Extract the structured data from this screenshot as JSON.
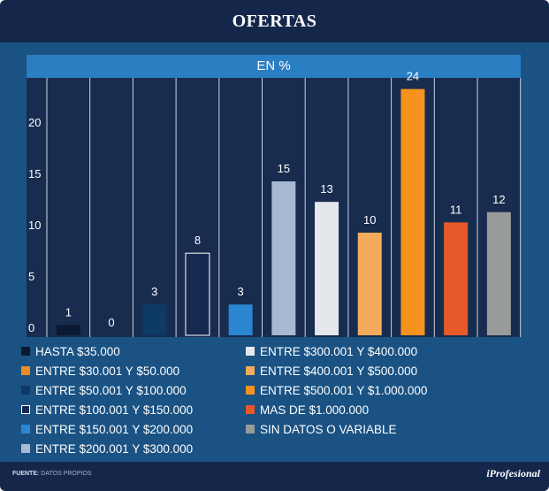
{
  "title": "OFERTAS",
  "chart_data": {
    "type": "bar",
    "subtitle": "EN %",
    "ylim": [
      0,
      25
    ],
    "yticks": [
      0,
      5,
      10,
      15,
      20
    ],
    "categories": [
      "HASTA $35.000",
      "ENTRE $30.001 Y $50.000",
      "ENTRE $50.001 Y $100.000",
      "ENTRE $100.001 Y $150.000",
      "ENTRE $150.001 Y $200.000",
      "ENTRE $200.001 Y $300.000",
      "ENTRE $300.001 Y $400.000",
      "ENTRE $400.001 Y $500.000",
      "ENTRE $500.001 Y $1.000.000",
      "MAS DE $1.000.000",
      "SIN DATOS O VARIABLE"
    ],
    "values": [
      1,
      0,
      3,
      8,
      3,
      15,
      13,
      10,
      24,
      11,
      12
    ],
    "colors": [
      "#0a1a33",
      "#f08a24",
      "#0e3a66",
      "#16294f",
      "#2b86d1",
      "#a7b9d3",
      "#e4e7ec",
      "#f4ac5c",
      "#f6921e",
      "#e8592a",
      "#999a9a"
    ],
    "outlined": [
      false,
      false,
      false,
      true,
      false,
      false,
      false,
      false,
      false,
      false,
      false
    ]
  },
  "footer": {
    "source_label": "FUENTE:",
    "source_text": "DATOS PROPIOS",
    "brand": "iProfesional"
  }
}
